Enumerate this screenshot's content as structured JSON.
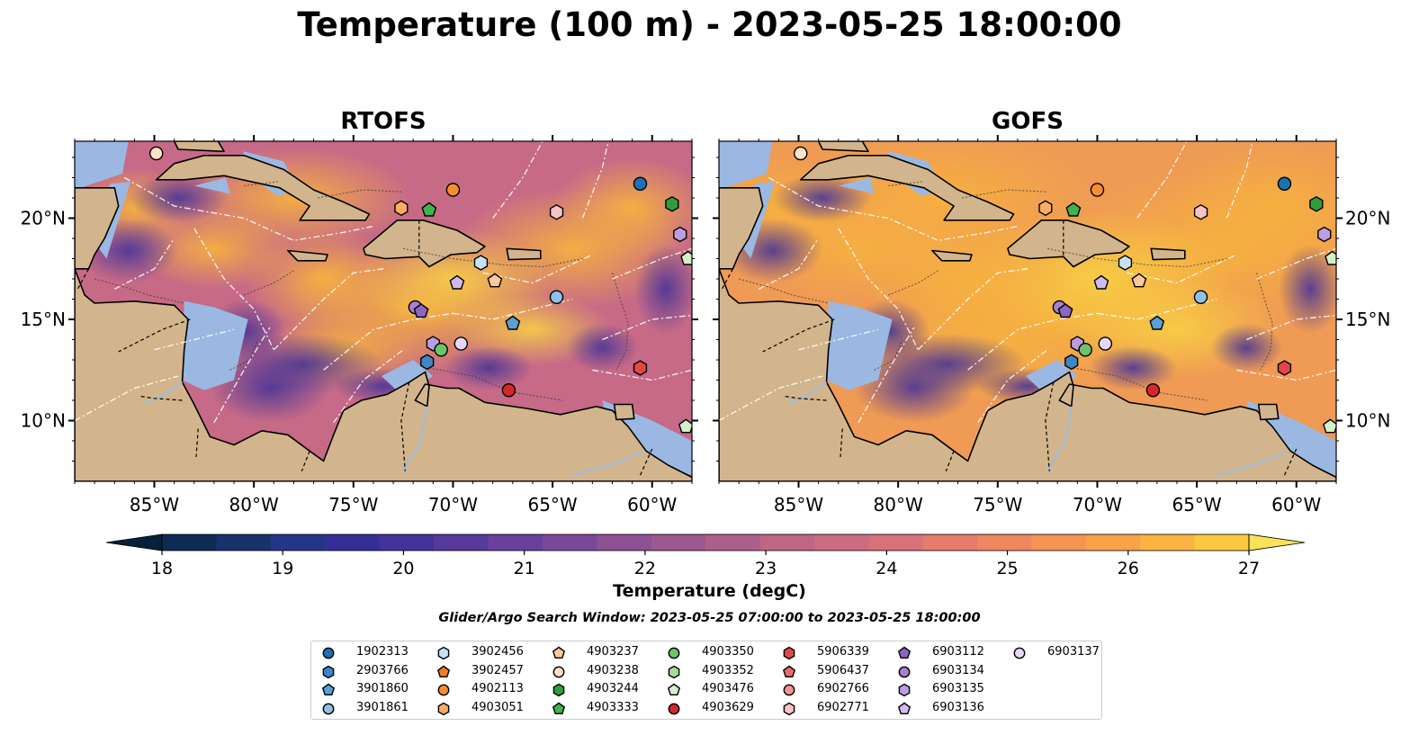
{
  "title": "Temperature (100 m) - 2023-05-25 18:00:00",
  "panels": [
    {
      "name": "rtofs",
      "title": "RTOFS"
    },
    {
      "name": "gofs",
      "title": "GOFS"
    }
  ],
  "lon_ticks": [
    "85°W",
    "80°W",
    "75°W",
    "70°W",
    "65°W",
    "60°W"
  ],
  "lat_ticks": [
    "20°N",
    "15°N",
    "10°N"
  ],
  "map_extent": {
    "lon": [
      -89,
      -58
    ],
    "lat": [
      7,
      23.8
    ]
  },
  "colorbar": {
    "label": "Temperature (degC)",
    "ticks": [
      "18",
      "19",
      "20",
      "21",
      "22",
      "23",
      "24",
      "25",
      "26",
      "27"
    ],
    "min": 18,
    "max": 27,
    "colors": [
      "#06213b",
      "#0d2c55",
      "#17336a",
      "#253688",
      "#342e98",
      "#44319a",
      "#57399b",
      "#6b3f9d",
      "#7a4898",
      "#8c5094",
      "#9c5890",
      "#ad5f8c",
      "#bd6686",
      "#cb6c80",
      "#d9717a",
      "#e77b6e",
      "#f08760",
      "#f69454",
      "#f9a348",
      "#fbb341",
      "#fbc73f",
      "#f7e25a"
    ]
  },
  "search_window": "Glider/Argo Search Window: 2023-05-25 07:00:00 to 2023-05-25 18:00:00",
  "legend": [
    {
      "id": "1902313",
      "marker": "circle",
      "color": "#1f6fb4"
    },
    {
      "id": "2903766",
      "marker": "hexagon",
      "color": "#3f86c4"
    },
    {
      "id": "3901860",
      "marker": "pentagon",
      "color": "#5aa0d6"
    },
    {
      "id": "3901861",
      "marker": "circle",
      "color": "#8fc1e8"
    },
    {
      "id": "3902456",
      "marker": "hexagon",
      "color": "#c6e2f6"
    },
    {
      "id": "3902457",
      "marker": "pentagon",
      "color": "#f07f1a"
    },
    {
      "id": "4902113",
      "marker": "circle",
      "color": "#f58f2d"
    },
    {
      "id": "4903051",
      "marker": "hexagon",
      "color": "#f8ad62"
    },
    {
      "id": "4903237",
      "marker": "pentagon",
      "color": "#f9c99a"
    },
    {
      "id": "4903238",
      "marker": "circle",
      "color": "#fde3c6"
    },
    {
      "id": "4903244",
      "marker": "hexagon",
      "color": "#2f9e3a"
    },
    {
      "id": "4903333",
      "marker": "pentagon",
      "color": "#3fb449"
    },
    {
      "id": "4903350",
      "marker": "circle",
      "color": "#6cc36b"
    },
    {
      "id": "4903352",
      "marker": "hexagon",
      "color": "#a2dc98"
    },
    {
      "id": "4903476",
      "marker": "pentagon",
      "color": "#d3f0c9"
    },
    {
      "id": "4903629",
      "marker": "circle",
      "color": "#d62728"
    },
    {
      "id": "5906339",
      "marker": "hexagon",
      "color": "#e0474a"
    },
    {
      "id": "5906437",
      "marker": "pentagon",
      "color": "#ec6a6c"
    },
    {
      "id": "6902766",
      "marker": "circle",
      "color": "#f49496"
    },
    {
      "id": "6902771",
      "marker": "hexagon",
      "color": "#f7c2c2"
    },
    {
      "id": "6903112",
      "marker": "pentagon",
      "color": "#8b66c2"
    },
    {
      "id": "6903134",
      "marker": "circle",
      "color": "#a482d0"
    },
    {
      "id": "6903135",
      "marker": "hexagon",
      "color": "#bb9ee0"
    },
    {
      "id": "6903136",
      "marker": "pentagon",
      "color": "#d0baf0"
    },
    {
      "id": "6903137",
      "marker": "circle",
      "color": "#e6d7f8"
    }
  ],
  "floats": [
    {
      "id": "4903238",
      "lon": -84.9,
      "lat": 23.2
    },
    {
      "id": "4902113",
      "lon": -70.0,
      "lat": 21.4
    },
    {
      "id": "4903051",
      "lon": -72.6,
      "lat": 20.5
    },
    {
      "id": "4903333",
      "lon": -71.2,
      "lat": 20.4
    },
    {
      "id": "6902771",
      "lon": -64.8,
      "lat": 20.3
    },
    {
      "id": "1902313",
      "lon": -60.6,
      "lat": 21.7
    },
    {
      "id": "4903244",
      "lon": -59.0,
      "lat": 20.7
    },
    {
      "id": "6903135",
      "lon": -58.6,
      "lat": 19.2
    },
    {
      "id": "4903476",
      "lon": -58.2,
      "lat": 18.0
    },
    {
      "id": "3902456",
      "lon": -68.6,
      "lat": 17.8
    },
    {
      "id": "4903237",
      "lon": -67.9,
      "lat": 16.9
    },
    {
      "id": "6903136",
      "lon": -69.8,
      "lat": 16.8
    },
    {
      "id": "3901861",
      "lon": -64.8,
      "lat": 16.1
    },
    {
      "id": "6903134",
      "lon": -71.9,
      "lat": 15.6
    },
    {
      "id": "6903112",
      "lon": -71.6,
      "lat": 15.4
    },
    {
      "id": "3901860",
      "lon": -67.0,
      "lat": 14.8
    },
    {
      "id": "6903135",
      "lon": -71.0,
      "lat": 13.8
    },
    {
      "id": "6903137",
      "lon": -69.6,
      "lat": 13.8
    },
    {
      "id": "4903350",
      "lon": -70.6,
      "lat": 13.5
    },
    {
      "id": "2903766",
      "lon": -71.3,
      "lat": 12.9
    },
    {
      "id": "5906339",
      "lon": -60.6,
      "lat": 12.6
    },
    {
      "id": "4903629",
      "lon": -67.2,
      "lat": 11.5
    },
    {
      "id": "4903476",
      "lon": -58.3,
      "lat": 9.7
    }
  ]
}
